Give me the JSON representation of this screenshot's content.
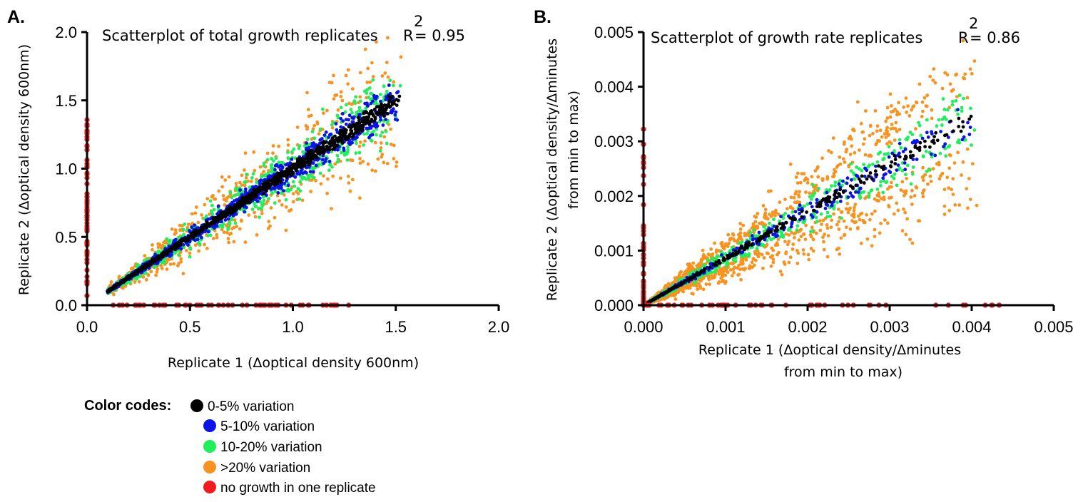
{
  "chart_data": [
    {
      "type": "scatter",
      "panel_label": "A.",
      "title": "Scatterplot of total growth replicates",
      "r2": {
        "label": "R",
        "sup": "2",
        "value": "= 0.95"
      },
      "xlabel": [
        "Replicate 1 (Δoptical density 600nm)"
      ],
      "ylabel": [
        "Replicate 2 (Δoptical density 600nm)"
      ],
      "xlim": [
        0,
        2.0
      ],
      "ylim": [
        0,
        2.0
      ],
      "xticks": [
        "0.0",
        "0.5",
        "1.0",
        "1.5",
        "2.0"
      ],
      "yticks": [
        "0.0",
        "0.5",
        "1.0",
        "1.5",
        "2.0"
      ],
      "grid": false,
      "trend": {
        "x_start": 0.1,
        "x_end": 1.5,
        "slope": 1.0
      },
      "series": [
        {
          "name": "0-5% variation",
          "color": "#000000",
          "spread": 0.03
        },
        {
          "name": "5-10% variation",
          "color": "#0a14e6",
          "spread": 0.075
        },
        {
          "name": "10-20% variation",
          "color": "#1eef5a",
          "spread": 0.15
        },
        {
          "name": ">20% variation",
          "color": "#f7931e",
          "spread": 0.3
        },
        {
          "name": "no growth in one replicate",
          "color": "#ee1c1c",
          "x_range": [
            0.1,
            1.35
          ],
          "y_range": [
            0.06,
            1.38
          ]
        }
      ]
    },
    {
      "type": "scatter",
      "panel_label": "B.",
      "title": "Scatterplot of growth rate replicates",
      "r2": {
        "label": "R",
        "sup": "2",
        "value": "= 0.86"
      },
      "xlabel": [
        "Replicate 1 (Δoptical density/Δminutes",
        "from min to max)"
      ],
      "ylabel": [
        "Replicate 2 (Δoptical density/Δminutes",
        "from min to max)"
      ],
      "xlim": [
        0,
        0.005
      ],
      "ylim": [
        0,
        0.005
      ],
      "xticks": [
        "0.000",
        "0.001",
        "0.002",
        "0.003",
        "0.004",
        "0.005"
      ],
      "yticks": [
        "0.000",
        "0.001",
        "0.002",
        "0.003",
        "0.004",
        "0.005"
      ],
      "grid": false,
      "trend": {
        "x_start": 0.0,
        "x_end": 0.004,
        "slope": 0.86
      },
      "series": [
        {
          "name": "0-5% variation",
          "color": "#000000",
          "spread": 0.03
        },
        {
          "name": "5-10% variation",
          "color": "#0a14e6",
          "spread": 0.075
        },
        {
          "name": "10-20% variation",
          "color": "#1eef5a",
          "spread": 0.15
        },
        {
          "name": ">20% variation",
          "color": "#f7931e",
          "spread": 0.4
        },
        {
          "name": "no growth in one replicate",
          "color": "#ee1c1c",
          "x_range": [
            0.0,
            0.0047
          ],
          "y_range": [
            0.0,
            0.0033
          ]
        }
      ]
    }
  ],
  "legend": {
    "heading": "Color codes:",
    "items": [
      {
        "label": "0-5% variation",
        "color": "#000000"
      },
      {
        "label": "5-10% variation",
        "color": "#0a14e6"
      },
      {
        "label": "10-20% variation",
        "color": "#1eef5a"
      },
      {
        "label": ">20% variation",
        "color": "#f7931e"
      },
      {
        "label": "no growth in one replicate",
        "color": "#ee1c1c"
      }
    ]
  }
}
